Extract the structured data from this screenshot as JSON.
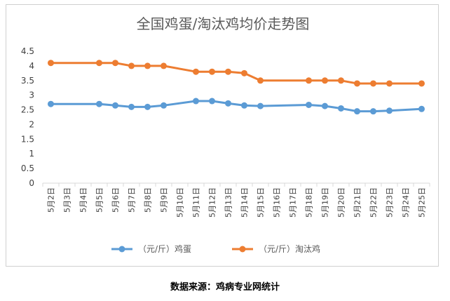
{
  "chart_data": {
    "type": "line",
    "title": "全国鸡蛋/淘汰鸡均价走势图",
    "categories": [
      "5月2日",
      "5月3日",
      "5月4日",
      "5月5日",
      "5月6日",
      "5月7日",
      "5月8日",
      "5月9日",
      "5月10日",
      "5月11日",
      "5月12日",
      "5月13日",
      "5月14日",
      "5月15日",
      "5月16日",
      "5月17日",
      "5月18日",
      "5月19日",
      "5月20日",
      "5月21日",
      "5月22日",
      "5月23日",
      "5月24日",
      "5月25日"
    ],
    "ylim": [
      0,
      4.5
    ],
    "yticks": [
      "0",
      "0.5",
      "1",
      "1.5",
      "2",
      "2.5",
      "3",
      "3.5",
      "4",
      "4.5"
    ],
    "grid": false,
    "legend_position": "bottom",
    "series": [
      {
        "name": "（元/斤）鸡蛋",
        "color": "#5b9bd5",
        "values": [
          2.7,
          null,
          null,
          2.7,
          2.65,
          2.6,
          2.6,
          2.65,
          null,
          2.8,
          2.8,
          2.72,
          2.65,
          2.63,
          null,
          null,
          2.67,
          2.63,
          2.55,
          2.45,
          2.45,
          2.47,
          null,
          2.53
        ]
      },
      {
        "name": "（元/斤）淘汰鸡",
        "color": "#ed7d31",
        "values": [
          4.1,
          null,
          null,
          4.1,
          4.1,
          4.0,
          4.0,
          4.0,
          null,
          3.8,
          3.8,
          3.8,
          3.75,
          3.5,
          null,
          null,
          3.5,
          3.5,
          3.5,
          3.4,
          3.4,
          3.4,
          null,
          3.4
        ]
      }
    ]
  },
  "source": "数据来源：鸡病专业网统计"
}
